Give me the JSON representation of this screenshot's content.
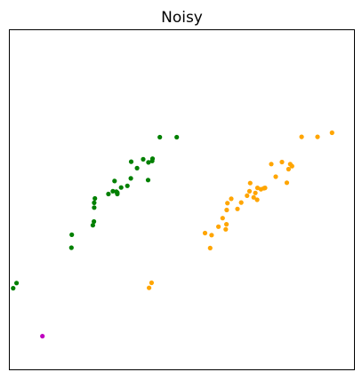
{
  "chart_data": {
    "type": "scatter",
    "title": "Noisy",
    "xlabel": "",
    "ylabel": "",
    "xlim": [
      0,
      100
    ],
    "ylim": [
      0,
      100
    ],
    "grid": false,
    "axis_ticks": false,
    "series": [
      {
        "color": "#008000",
        "points": [
          [
            1.1,
            24.0
          ],
          [
            2.1,
            25.5
          ],
          [
            18.0,
            35.9
          ],
          [
            18.1,
            39.7
          ],
          [
            24.2,
            42.5
          ],
          [
            24.5,
            43.6
          ],
          [
            24.6,
            47.7
          ],
          [
            24.6,
            49.1
          ],
          [
            24.8,
            50.4
          ],
          [
            28.7,
            51.7
          ],
          [
            30.0,
            52.5
          ],
          [
            30.5,
            55.5
          ],
          [
            31.0,
            52.4
          ],
          [
            31.3,
            51.7
          ],
          [
            31.3,
            52.1
          ],
          [
            32.4,
            53.6
          ],
          [
            34.2,
            54.1
          ],
          [
            35.2,
            56.3
          ],
          [
            35.3,
            61.2
          ],
          [
            37.0,
            59.3
          ],
          [
            38.8,
            61.9
          ],
          [
            40.2,
            55.8
          ],
          [
            40.3,
            61.0
          ],
          [
            41.4,
            61.4
          ],
          [
            41.5,
            62.1
          ],
          [
            43.6,
            68.4
          ],
          [
            48.5,
            68.4
          ]
        ]
      },
      {
        "color": "#ffa500",
        "points": [
          [
            40.5,
            24.1
          ],
          [
            41.2,
            25.6
          ],
          [
            56.7,
            40.2
          ],
          [
            58.2,
            35.8
          ],
          [
            58.6,
            39.6
          ],
          [
            60.6,
            42.1
          ],
          [
            61.8,
            44.6
          ],
          [
            62.7,
            41.3
          ],
          [
            62.9,
            42.8
          ],
          [
            63.0,
            47.0
          ],
          [
            63.2,
            49.0
          ],
          [
            64.3,
            50.3
          ],
          [
            66.1,
            47.3
          ],
          [
            67.2,
            49.2
          ],
          [
            68.9,
            51.2
          ],
          [
            69.6,
            52.5
          ],
          [
            69.8,
            54.9
          ],
          [
            70.8,
            50.7
          ],
          [
            71.3,
            52.0
          ],
          [
            71.8,
            50.0
          ],
          [
            71.9,
            53.5
          ],
          [
            72.9,
            53.1
          ],
          [
            73.8,
            53.4
          ],
          [
            74.1,
            53.5
          ],
          [
            75.9,
            60.5
          ],
          [
            77.2,
            56.8
          ],
          [
            79.0,
            61.1
          ],
          [
            80.4,
            55.0
          ],
          [
            80.9,
            59.0
          ],
          [
            81.4,
            60.5
          ],
          [
            81.9,
            59.9
          ],
          [
            84.7,
            68.5
          ],
          [
            89.3,
            68.5
          ],
          [
            93.5,
            69.7
          ]
        ]
      },
      {
        "color": "#bf00bf",
        "points": [
          [
            9.6,
            9.9
          ]
        ]
      }
    ]
  }
}
